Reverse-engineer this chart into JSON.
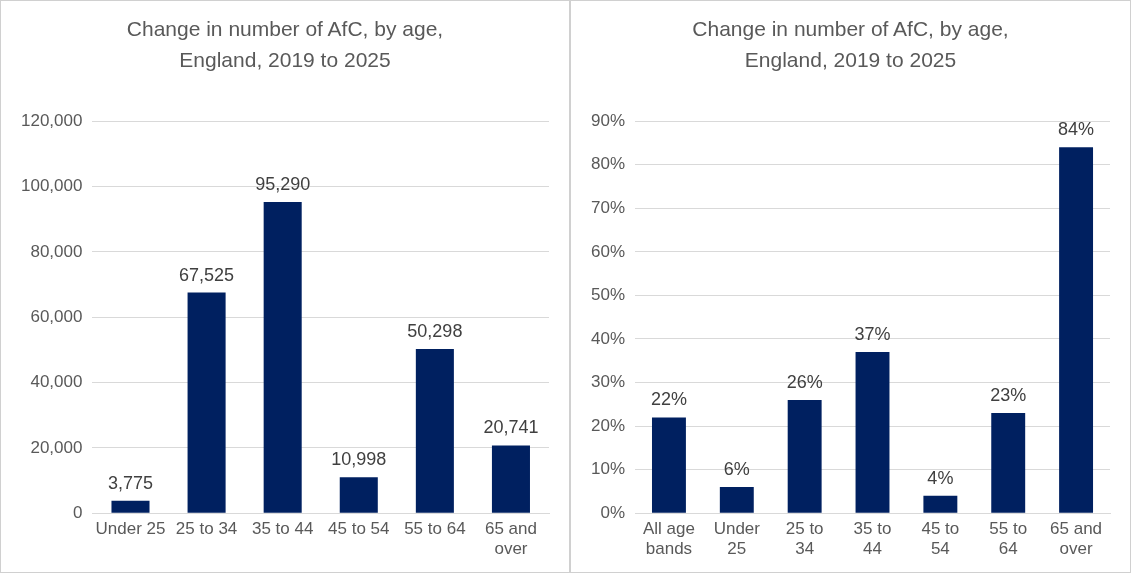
{
  "chart_data": [
    {
      "type": "bar",
      "title": "Change in number of AfC, by age, England, 2019 to 2025",
      "categories": [
        "Under 25",
        "25 to 34",
        "35 to 44",
        "45 to 54",
        "55 to 64",
        "65 and over"
      ],
      "values": [
        3775,
        67525,
        95290,
        10998,
        50298,
        20741
      ],
      "color": "#002060",
      "ylim": [
        0,
        120000
      ],
      "yticks": [
        {
          "value": 0,
          "label": "0"
        },
        {
          "value": 20000,
          "label": "20,000"
        },
        {
          "value": 40000,
          "label": "40,000"
        },
        {
          "value": 60000,
          "label": "60,000"
        },
        {
          "value": 80000,
          "label": "80,000"
        },
        {
          "value": 100000,
          "label": "100,000"
        },
        {
          "value": 120000,
          "label": "120,000"
        }
      ],
      "grid": "y",
      "legend": false,
      "value_labels": [
        "3,775",
        "67,525",
        "95,290",
        "10,998",
        "50,298",
        "20,741"
      ]
    },
    {
      "type": "bar",
      "title": "Change in number of AfC, by age, England, 2019 to 2025",
      "categories": [
        "All age bands",
        "Under 25",
        "25 to 34",
        "35 to 44",
        "45 to 54",
        "55 to 64",
        "65 and over"
      ],
      "values": [
        22,
        6,
        26,
        37,
        4,
        23,
        84
      ],
      "color": "#002060",
      "ylim": [
        0,
        90
      ],
      "yticks": [
        {
          "value": 0,
          "label": "0%"
        },
        {
          "value": 10,
          "label": "10%"
        },
        {
          "value": 20,
          "label": "20%"
        },
        {
          "value": 30,
          "label": "30%"
        },
        {
          "value": 40,
          "label": "40%"
        },
        {
          "value": 50,
          "label": "50%"
        },
        {
          "value": 60,
          "label": "60%"
        },
        {
          "value": 70,
          "label": "70%"
        },
        {
          "value": 80,
          "label": "80%"
        },
        {
          "value": 90,
          "label": "90%"
        }
      ],
      "grid": "y",
      "legend": false,
      "value_labels": [
        "22%",
        "6%",
        "26%",
        "37%",
        "4%",
        "23%",
        "84%"
      ]
    }
  ]
}
